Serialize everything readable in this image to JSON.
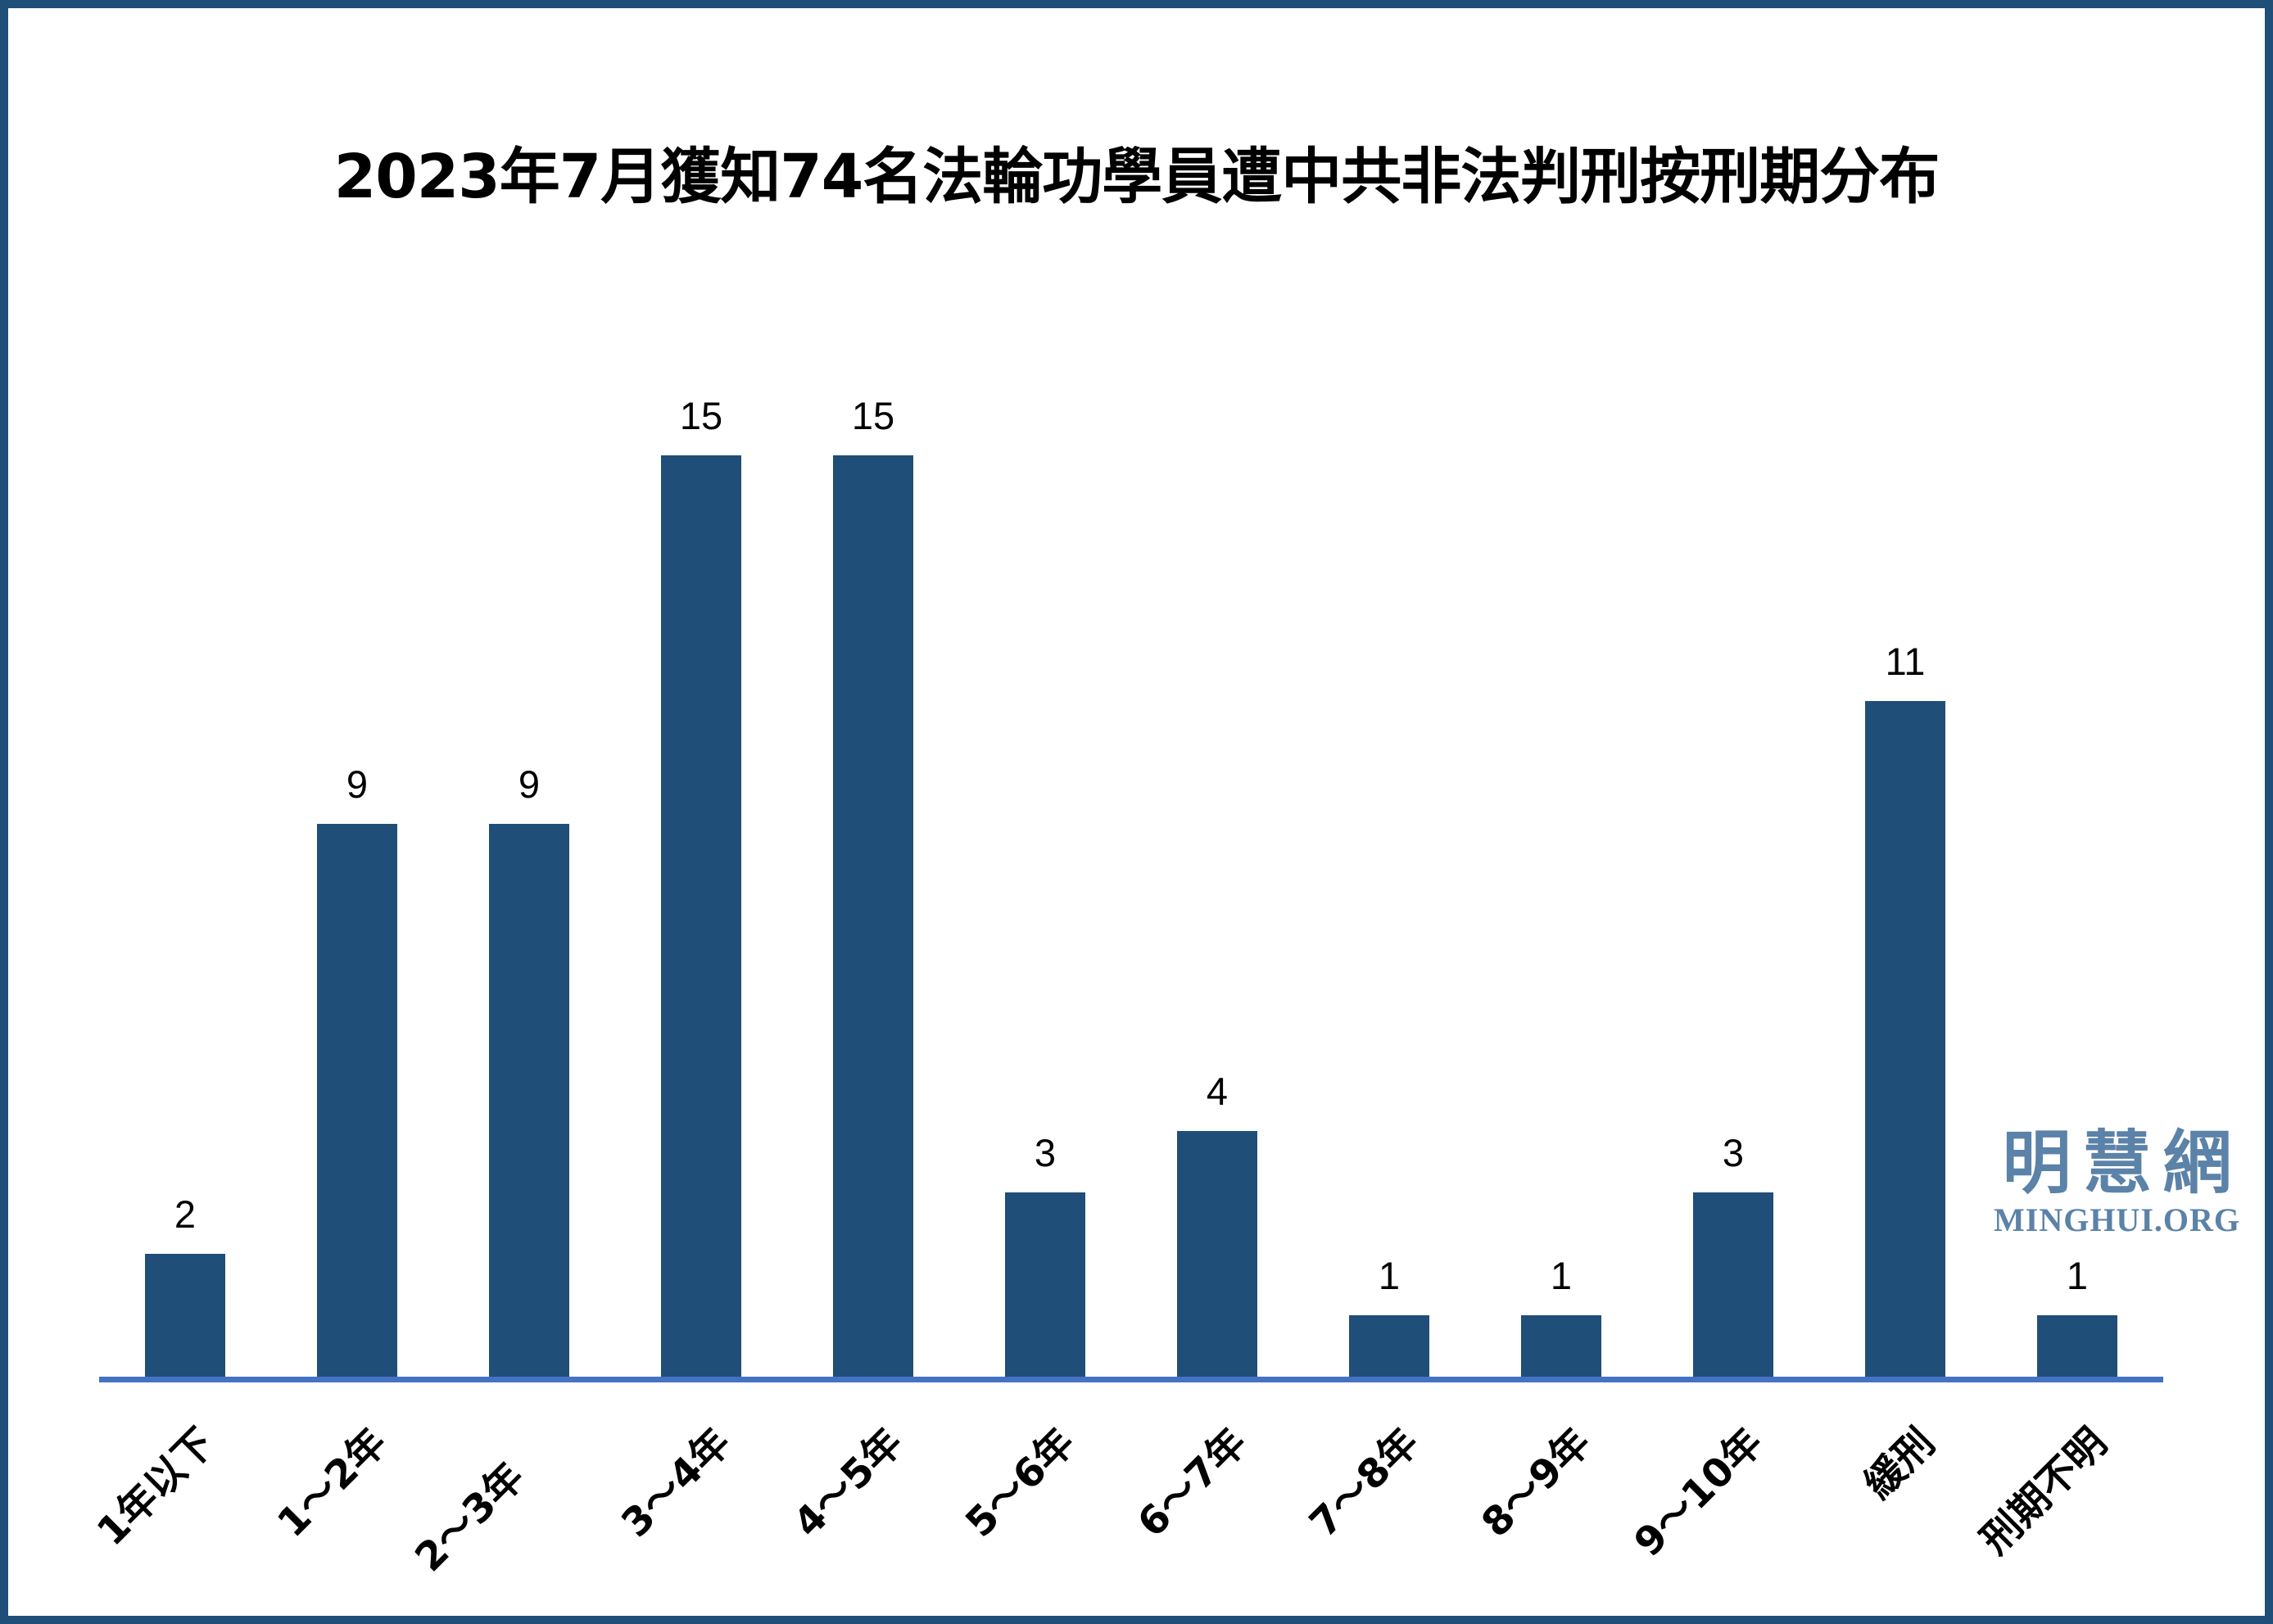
{
  "title": "2023年7月獲知74名法輪功學員遭中共非法判刑按刑期分布",
  "watermark": {
    "cjk": "明慧網",
    "latin": "MINGHUI.ORG"
  },
  "colors": {
    "bar": "#1F4E79",
    "axis_line": "#4472C4",
    "frame_border": "#1F4E79",
    "labels": "#000000",
    "logo": "#5B82A8",
    "background": "#FFFFFF"
  },
  "chart_data": {
    "type": "bar",
    "title": "2023年7月獲知74名法輪功學員遭中共非法判刑按刑期分布",
    "categories": [
      "1年以下",
      "1～2年",
      "2～3年",
      "3～4年",
      "4～5年",
      "5～6年",
      "6～7年",
      "7～8年",
      "8～9年",
      "9～10年",
      "緩刑",
      "刑期不明"
    ],
    "values": [
      2,
      9,
      9,
      15,
      15,
      3,
      4,
      1,
      1,
      3,
      11,
      1
    ],
    "total": 74,
    "xlabel": "",
    "ylabel": "",
    "ylim": [
      0,
      16
    ],
    "grid": false,
    "y_axis_shown": false,
    "data_labels": true,
    "x_tick_rotation_deg": 45,
    "legend": "none"
  }
}
